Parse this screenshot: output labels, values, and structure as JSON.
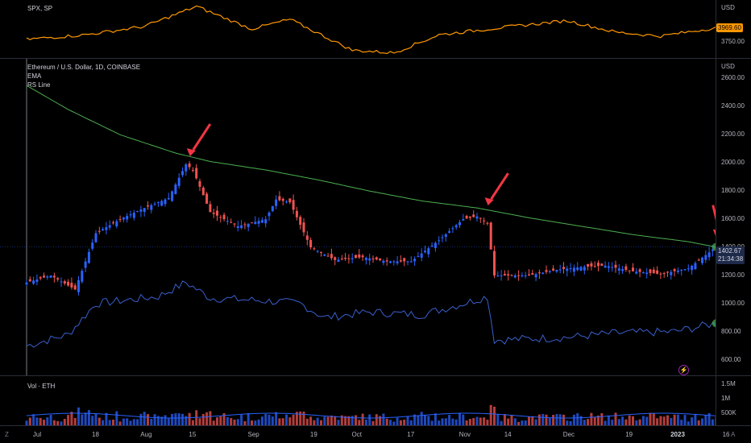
{
  "spx": {
    "title": "SPX, SP",
    "currency": "USD",
    "last_label": "3969.60",
    "tick_labels": [
      "3750.00"
    ],
    "color": "#ff9800"
  },
  "main": {
    "title": "Ethereum / U.S. Dollar, 1D, COINBASE",
    "indicator1": "EMA",
    "indicator2": "RS Line",
    "currency": "USD",
    "price_label": "1402.67",
    "countdown": "21:34:38",
    "ema_color": "#4caf50",
    "rs_color": "#3a5fcd",
    "up_color": "#2962ff",
    "down_color": "#ef5350",
    "arrow_color": "#f23645"
  },
  "volume": {
    "title": "Vol · ETH",
    "tick_labels": [
      "1.5M",
      "1M",
      "500K"
    ]
  },
  "time_axis": {
    "labels": [
      "Jul",
      "18",
      "Aug",
      "15",
      "Sep",
      "19",
      "Oct",
      "17",
      "Nov",
      "14",
      "Dec",
      "19",
      "2023",
      "16"
    ]
  },
  "corner": {
    "left": "Z",
    "right": "A"
  },
  "chart_data": {
    "type": "candlestick",
    "y_ticks": [
      600,
      800,
      1000,
      1200,
      1400,
      1600,
      1800,
      2000,
      2200,
      2400,
      2600
    ],
    "y_range": [
      490,
      2740
    ],
    "ema_series": [
      [
        "Jun 28",
        2550
      ],
      [
        "Jul 10",
        2380
      ],
      [
        "Jul 25",
        2200
      ],
      [
        "Aug 10",
        2070
      ],
      [
        "Aug 20",
        2010
      ],
      [
        "Sep 5",
        1950
      ],
      [
        "Sep 20",
        1880
      ],
      [
        "Oct 5",
        1800
      ],
      [
        "Oct 20",
        1730
      ],
      [
        "Nov 5",
        1680
      ],
      [
        "Nov 20",
        1610
      ],
      [
        "Dec 5",
        1550
      ],
      [
        "Dec 20",
        1490
      ],
      [
        "Jan 5",
        1440
      ],
      [
        "Jan 13",
        1402
      ]
    ],
    "price_series": [
      [
        "Jun 28",
        1150
      ],
      [
        "Jul 5",
        1200
      ],
      [
        "Jul 12",
        1100
      ],
      [
        "Jul 18",
        1500
      ],
      [
        "Jul 25",
        1600
      ],
      [
        "Aug 1",
        1680
      ],
      [
        "Aug 8",
        1750
      ],
      [
        "Aug 13",
        1990
      ],
      [
        "Aug 15",
        1950
      ],
      [
        "Aug 20",
        1650
      ],
      [
        "Aug 28",
        1550
      ],
      [
        "Sep 5",
        1600
      ],
      [
        "Sep 8",
        1740
      ],
      [
        "Sep 12",
        1720
      ],
      [
        "Sep 18",
        1400
      ],
      [
        "Sep 25",
        1310
      ],
      [
        "Oct 3",
        1330
      ],
      [
        "Oct 10",
        1300
      ],
      [
        "Oct 17",
        1300
      ],
      [
        "Oct 25",
        1450
      ],
      [
        "Nov 1",
        1600
      ],
      [
        "Nov 5",
        1620
      ],
      [
        "Nov 8",
        1570
      ],
      [
        "Nov 10",
        1200
      ],
      [
        "Nov 20",
        1200
      ],
      [
        "Nov 28",
        1240
      ],
      [
        "Dec 5",
        1260
      ],
      [
        "Dec 12",
        1270
      ],
      [
        "Dec 20",
        1230
      ],
      [
        "Dec 28",
        1210
      ],
      [
        "Jan 5",
        1250
      ],
      [
        "Jan 13",
        1402
      ]
    ],
    "rs_series": [
      [
        "Jun 28",
        700
      ],
      [
        "Jul 10",
        780
      ],
      [
        "Jul 18",
        1000
      ],
      [
        "Aug 5",
        1050
      ],
      [
        "Aug 13",
        1150
      ],
      [
        "Aug 20",
        1040
      ],
      [
        "Sep 5",
        1020
      ],
      [
        "Sep 15",
        1000
      ],
      [
        "Sep 22",
        900
      ],
      [
        "Oct 5",
        940
      ],
      [
        "Oct 20",
        920
      ],
      [
        "Nov 1",
        1000
      ],
      [
        "Nov 8",
        1050
      ],
      [
        "Nov 10",
        740
      ],
      [
        "Nov 20",
        750
      ],
      [
        "Dec 1",
        760
      ],
      [
        "Dec 15",
        790
      ],
      [
        "Jan 1",
        800
      ],
      [
        "Jan 13",
        860
      ]
    ],
    "spx_series": [
      [
        "Jun 28",
        3790
      ],
      [
        "Jul 15",
        3860
      ],
      [
        "Aug 1",
        3990
      ],
      [
        "Aug 16",
        4300
      ],
      [
        "Sep 1",
        3950
      ],
      [
        "Sep 12",
        4100
      ],
      [
        "Sep 30",
        3620
      ],
      [
        "Oct 12",
        3580
      ],
      [
        "Oct 25",
        3860
      ],
      [
        "Nov 10",
        3960
      ],
      [
        "Dec 1",
        4080
      ],
      [
        "Dec 15",
        3900
      ],
      [
        "Dec 28",
        3840
      ],
      [
        "Jan 13",
        3969.6
      ]
    ]
  }
}
